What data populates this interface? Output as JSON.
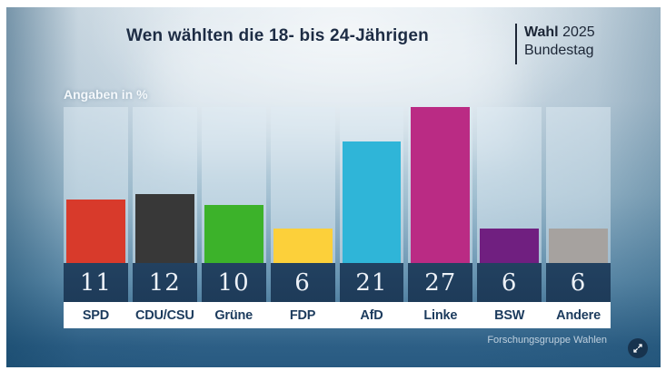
{
  "header": {
    "title": "Wen wählten die 18- bis 24-Jährigen",
    "brand": {
      "bold": "Wahl",
      "year": "2025",
      "line2": "Bundestag"
    }
  },
  "chart": {
    "unit_label": "Angaben in %",
    "source": "Forschungsgruppe Wahlen",
    "max": 27,
    "parties": [
      {
        "name": "SPD",
        "value": 11,
        "color": "#d83a2b"
      },
      {
        "name": "CDU/CSU",
        "value": 12,
        "color": "#383838"
      },
      {
        "name": "Grüne",
        "value": 10,
        "color": "#3cb22a"
      },
      {
        "name": "FDP",
        "value": 6,
        "color": "#fcd03a"
      },
      {
        "name": "AfD",
        "value": 21,
        "color": "#2fb5d8"
      },
      {
        "name": "Linke",
        "value": 27,
        "color": "#ba2b84"
      },
      {
        "name": "BSW",
        "value": 6,
        "color": "#701f80"
      },
      {
        "name": "Andere",
        "value": 6,
        "color": "#a6a29f"
      }
    ],
    "colors": {
      "value_box": "#1f3d5c",
      "label_text": "#1c3b5d",
      "band_bg": "#ffffff"
    }
  },
  "chart_data": {
    "type": "bar",
    "title": "Wen wählten die 18- bis 24-Jährigen",
    "subtitle": "Wahl 2025 Bundestag",
    "unit": "Angaben in %",
    "source": "Forschungsgruppe Wahlen",
    "categories": [
      "SPD",
      "CDU/CSU",
      "Grüne",
      "FDP",
      "AfD",
      "Linke",
      "BSW",
      "Andere"
    ],
    "values": [
      11,
      12,
      10,
      6,
      21,
      27,
      6,
      6
    ],
    "bar_colors": [
      "#d83a2b",
      "#383838",
      "#3cb22a",
      "#fcd03a",
      "#2fb5d8",
      "#ba2b84",
      "#701f80",
      "#a6a29f"
    ],
    "xlabel": "",
    "ylabel": "Angaben in %",
    "ylim": [
      0,
      27
    ],
    "grid": false,
    "legend_position": "none",
    "data_labels": true
  }
}
